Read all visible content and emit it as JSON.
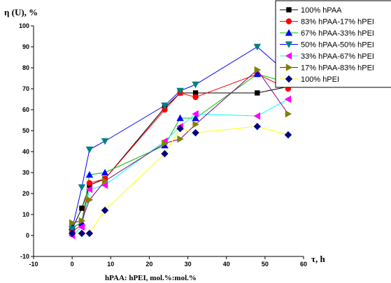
{
  "chart_data": {
    "type": "line",
    "ylabel": "η (U), %",
    "xlabel": "τ, h",
    "x_caption": "hPAA: hPEI, mol.%:mol.%",
    "xlim": [
      -10,
      60
    ],
    "ylim": [
      -10,
      100
    ],
    "x_ticks": [
      -10,
      0,
      10,
      20,
      30,
      40,
      50,
      60
    ],
    "y_ticks": [
      -10,
      0,
      10,
      20,
      30,
      40,
      50,
      60,
      70,
      80,
      90,
      100
    ],
    "grid": false,
    "legend_position": "top-right",
    "series": [
      {
        "name": "100% hPAA",
        "color": "#000000",
        "marker": "square",
        "x": [
          0,
          2.5,
          4.5,
          8.5,
          24,
          28,
          32,
          48,
          56
        ],
        "y": [
          3,
          13,
          24,
          27,
          61,
          68,
          68,
          68,
          71
        ]
      },
      {
        "name": "83% hPAA-17% hPEI",
        "color": "#ff0000",
        "marker": "circle",
        "x": [
          0,
          2.5,
          4.5,
          8.5,
          24,
          28,
          32,
          48,
          56
        ],
        "y": [
          2,
          5,
          25,
          27,
          60,
          68,
          66,
          77,
          70
        ]
      },
      {
        "name": "67% hPAA-33% hPEI",
        "color": "#0000ff",
        "marker": "triangle-up",
        "x": [
          0,
          2.5,
          4.5,
          8.5,
          24,
          28,
          32,
          48,
          56
        ],
        "y": [
          4,
          6,
          29,
          30,
          43,
          56,
          56,
          77,
          73
        ]
      },
      {
        "name": "50% hPAA-50% hPEI",
        "color": "#008080",
        "marker": "triangle-down",
        "x": [
          0,
          2.5,
          4.5,
          8.5,
          24,
          28,
          32,
          48,
          56
        ],
        "y": [
          3,
          23,
          41,
          45,
          62,
          69,
          72,
          90,
          77
        ]
      },
      {
        "name": "33% hPAA-67% hPEI",
        "color": "#ff00ff",
        "marker": "triangle-left",
        "x": [
          0,
          2.5,
          4.5,
          8.5,
          24,
          28,
          32,
          48,
          56
        ],
        "y": [
          0,
          4,
          22,
          24,
          45,
          52,
          58,
          57,
          65
        ]
      },
      {
        "name": "17% hPAA-83% hPEI",
        "color": "#808000",
        "marker": "triangle-right",
        "x": [
          0,
          2.5,
          4.5,
          8.5,
          24,
          28,
          32,
          48,
          56
        ],
        "y": [
          6,
          7,
          17,
          26,
          44,
          46,
          53,
          79,
          58
        ]
      },
      {
        "name": "100% hPEI",
        "color": "#000080",
        "marker": "diamond",
        "x": [
          0,
          2.5,
          4.5,
          8.5,
          24,
          28,
          32,
          48,
          56
        ],
        "y": [
          1,
          1,
          1,
          12,
          39,
          51,
          49,
          52,
          48
        ]
      }
    ],
    "line_colors": [
      "#000000",
      "#ff0000",
      "#00c000",
      "#0000ff",
      "#00ffff",
      "#800080",
      "#ffff00"
    ]
  }
}
